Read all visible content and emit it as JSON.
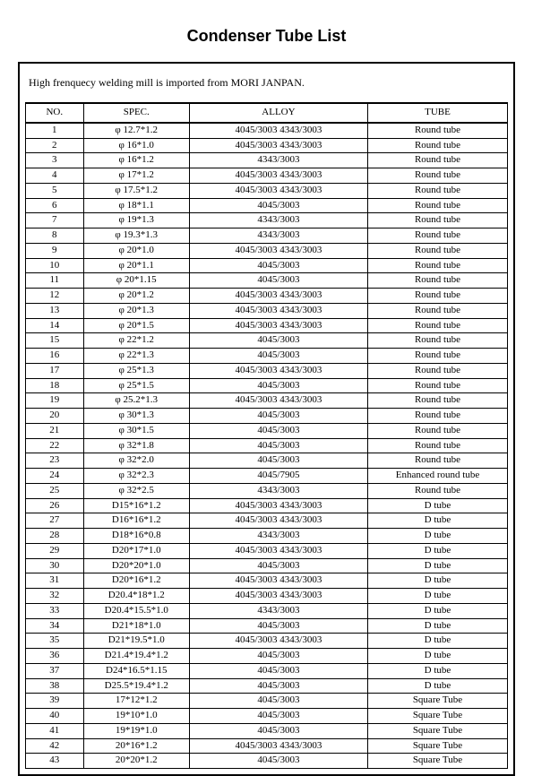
{
  "title": "Condenser Tube List",
  "intro": "High frenquecy welding mill is imported from MORI JANPAN.",
  "columns": [
    "NO.",
    "SPEC.",
    "ALLOY",
    "TUBE"
  ],
  "phi": "φ",
  "rows": [
    {
      "no": "1",
      "spec": "φ 12.7*1.2",
      "alloy": "4045/3003    4343/3003",
      "tube": "Round tube"
    },
    {
      "no": "2",
      "spec": "φ 16*1.0",
      "alloy": "4045/3003    4343/3003",
      "tube": "Round tube"
    },
    {
      "no": "3",
      "spec": "φ 16*1.2",
      "alloy": "4343/3003",
      "tube": "Round tube"
    },
    {
      "no": "4",
      "spec": "φ 17*1.2",
      "alloy": "4045/3003    4343/3003",
      "tube": "Round tube"
    },
    {
      "no": "5",
      "spec": "φ 17.5*1.2",
      "alloy": "4045/3003    4343/3003",
      "tube": "Round tube"
    },
    {
      "no": "6",
      "spec": "φ 18*1.1",
      "alloy": "4045/3003",
      "tube": "Round tube"
    },
    {
      "no": "7",
      "spec": "φ 19*1.3",
      "alloy": "4343/3003",
      "tube": "Round tube"
    },
    {
      "no": "8",
      "spec": "φ 19.3*1.3",
      "alloy": "4343/3003",
      "tube": "Round tube"
    },
    {
      "no": "9",
      "spec": "φ 20*1.0",
      "alloy": "4045/3003    4343/3003",
      "tube": "Round tube"
    },
    {
      "no": "10",
      "spec": "φ 20*1.1",
      "alloy": "4045/3003",
      "tube": "Round tube"
    },
    {
      "no": "11",
      "spec": "φ 20*1.15",
      "alloy": "4045/3003",
      "tube": "Round tube"
    },
    {
      "no": "12",
      "spec": "φ 20*1.2",
      "alloy": "4045/3003    4343/3003",
      "tube": "Round tube"
    },
    {
      "no": "13",
      "spec": "φ 20*1.3",
      "alloy": "4045/3003    4343/3003",
      "tube": "Round tube"
    },
    {
      "no": "14",
      "spec": "φ 20*1.5",
      "alloy": "4045/3003    4343/3003",
      "tube": "Round tube"
    },
    {
      "no": "15",
      "spec": "φ 22*1.2",
      "alloy": "4045/3003",
      "tube": "Round tube"
    },
    {
      "no": "16",
      "spec": "φ 22*1.3",
      "alloy": "4045/3003",
      "tube": "Round tube"
    },
    {
      "no": "17",
      "spec": "φ 25*1.3",
      "alloy": "4045/3003    4343/3003",
      "tube": "Round tube"
    },
    {
      "no": "18",
      "spec": "φ 25*1.5",
      "alloy": "4045/3003",
      "tube": "Round tube"
    },
    {
      "no": "19",
      "spec": "φ 25.2*1.3",
      "alloy": "4045/3003    4343/3003",
      "tube": "Round tube"
    },
    {
      "no": "20",
      "spec": "φ 30*1.3",
      "alloy": "4045/3003",
      "tube": "Round tube"
    },
    {
      "no": "21",
      "spec": "φ 30*1.5",
      "alloy": "4045/3003",
      "tube": "Round tube"
    },
    {
      "no": "22",
      "spec": "φ 32*1.8",
      "alloy": "4045/3003",
      "tube": "Round tube"
    },
    {
      "no": "23",
      "spec": "φ 32*2.0",
      "alloy": "4045/3003",
      "tube": "Round tube"
    },
    {
      "no": "24",
      "spec": "φ 32*2.3",
      "alloy": "4045/7905",
      "tube": "Enhanced round tube"
    },
    {
      "no": "25",
      "spec": "φ 32*2.5",
      "alloy": "4343/3003",
      "tube": "Round tube"
    },
    {
      "no": "26",
      "spec": "D15*16*1.2",
      "alloy": "4045/3003    4343/3003",
      "tube": "D tube"
    },
    {
      "no": "27",
      "spec": "D16*16*1.2",
      "alloy": "4045/3003    4343/3003",
      "tube": "D tube"
    },
    {
      "no": "28",
      "spec": "D18*16*0.8",
      "alloy": "4343/3003",
      "tube": "D tube"
    },
    {
      "no": "29",
      "spec": "D20*17*1.0",
      "alloy": "4045/3003    4343/3003",
      "tube": "D tube"
    },
    {
      "no": "30",
      "spec": "D20*20*1.0",
      "alloy": "4045/3003",
      "tube": "D tube"
    },
    {
      "no": "31",
      "spec": "D20*16*1.2",
      "alloy": "4045/3003    4343/3003",
      "tube": "D tube"
    },
    {
      "no": "32",
      "spec": "D20.4*18*1.2",
      "alloy": "4045/3003    4343/3003",
      "tube": "D tube"
    },
    {
      "no": "33",
      "spec": "D20.4*15.5*1.0",
      "alloy": "4343/3003",
      "tube": "D tube"
    },
    {
      "no": "34",
      "spec": "D21*18*1.0",
      "alloy": "4045/3003",
      "tube": "D tube"
    },
    {
      "no": "35",
      "spec": "D21*19.5*1.0",
      "alloy": "4045/3003    4343/3003",
      "tube": "D tube"
    },
    {
      "no": "36",
      "spec": "D21.4*19.4*1.2",
      "alloy": "4045/3003",
      "tube": "D tube"
    },
    {
      "no": "37",
      "spec": "D24*16.5*1.15",
      "alloy": "4045/3003",
      "tube": "D tube"
    },
    {
      "no": "38",
      "spec": "D25.5*19.4*1.2",
      "alloy": "4045/3003",
      "tube": "D tube"
    },
    {
      "no": "39",
      "spec": "17*12*1.2",
      "alloy": "4045/3003",
      "tube": "Square Tube"
    },
    {
      "no": "40",
      "spec": "19*10*1.0",
      "alloy": "4045/3003",
      "tube": "Square Tube"
    },
    {
      "no": "41",
      "spec": "19*19*1.0",
      "alloy": "4045/3003",
      "tube": "Square Tube"
    },
    {
      "no": "42",
      "spec": "20*16*1.2",
      "alloy": "4045/3003    4343/3003",
      "tube": "Square Tube"
    },
    {
      "no": "43",
      "spec": "20*20*1.2",
      "alloy": "4045/3003",
      "tube": "Square Tube"
    }
  ]
}
